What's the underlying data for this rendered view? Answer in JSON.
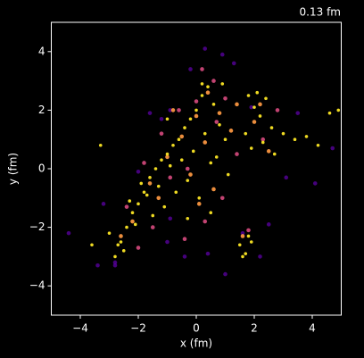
{
  "chart_data": {
    "type": "scatter",
    "title": "0.13 fm",
    "xlabel": "x (fm)",
    "ylabel": "y (fm)",
    "xlim": [
      -5,
      5
    ],
    "ylim": [
      -5,
      5
    ],
    "xticks": [
      {
        "value": -4,
        "label": "−4"
      },
      {
        "value": -2,
        "label": "−2"
      },
      0,
      2,
      4
    ],
    "yticks": [
      {
        "value": -4,
        "label": "−4"
      },
      {
        "value": -2,
        "label": "−2"
      },
      0,
      2,
      4
    ],
    "grid": false,
    "series": [
      {
        "color": "#5c01a6",
        "x": [
          -4.4,
          -3.4,
          -2.8,
          -1.0,
          -0.4,
          0.4,
          1.0,
          1.3,
          3.1,
          4.1,
          4.7,
          -0.9,
          0.3,
          -2.0,
          1.6,
          2.5,
          -3.2,
          -1.6,
          0.9,
          1.9,
          3.5,
          -2.8,
          -0.2,
          -1.2,
          2.2,
          -0.9
        ],
        "y": [
          -2.2,
          -3.3,
          -3.2,
          -2.5,
          -3.0,
          -2.9,
          -3.6,
          3.6,
          -0.3,
          -0.5,
          0.7,
          2.0,
          4.1,
          -0.1,
          -2.2,
          -1.9,
          -1.2,
          1.9,
          3.9,
          2.1,
          1.9,
          -3.3,
          3.4,
          1.7,
          -3.0,
          -1.7
        ]
      },
      {
        "color": "#cc4778",
        "x": [
          -1.8,
          -1.2,
          -0.6,
          0.0,
          0.6,
          1.0,
          -2.4,
          -0.3,
          0.3,
          1.4,
          2.3,
          -1.5,
          0.9,
          1.8,
          -0.9,
          -2.0,
          0.7,
          2.8,
          0.2,
          -0.4
        ],
        "y": [
          0.2,
          1.2,
          2.0,
          2.3,
          3.0,
          2.4,
          -1.3,
          0.0,
          -1.8,
          0.5,
          1.0,
          -2.0,
          -1.0,
          -2.1,
          -0.3,
          -2.7,
          1.6,
          2.0,
          3.4,
          -2.4
        ]
      },
      {
        "color": "#f89540",
        "x": [
          -2.2,
          -1.6,
          -1.0,
          -0.5,
          0.0,
          0.4,
          0.8,
          1.2,
          2.0,
          2.5,
          1.6,
          -0.2,
          0.3,
          -1.3,
          -2.6,
          0.6,
          2.2,
          1.4,
          -0.8,
          0.1
        ],
        "y": [
          -1.8,
          -0.5,
          0.4,
          1.1,
          1.8,
          2.6,
          1.9,
          1.3,
          1.6,
          0.6,
          -2.3,
          -0.2,
          0.9,
          -1.0,
          -2.3,
          -0.7,
          2.2,
          2.2,
          2.0,
          -1.2
        ]
      },
      {
        "color": "#fce624",
        "x": [
          -2.8,
          -2.6,
          -2.4,
          -2.2,
          -2.0,
          -1.8,
          -1.6,
          -1.4,
          -1.2,
          -1.0,
          -0.8,
          -0.6,
          -0.4,
          -0.2,
          0.0,
          0.2,
          0.4,
          0.6,
          0.8,
          1.0,
          -2.5,
          -2.1,
          -1.7,
          -1.3,
          -0.9,
          -0.5,
          -0.1,
          0.3,
          0.7,
          1.1,
          -3.0,
          -2.7,
          -2.3,
          -1.9,
          -1.5,
          -1.1,
          -0.7,
          -0.3,
          0.1,
          0.5,
          1.8,
          2.0,
          2.2,
          2.4,
          2.6,
          1.9,
          2.3,
          2.7,
          1.7,
          2.1,
          3.0,
          3.4,
          3.8,
          4.2,
          4.6,
          4.9,
          1.5,
          1.7,
          1.9,
          1.6,
          1.8,
          -3.3,
          -3.6,
          -1.0,
          0.2,
          0.5,
          -0.3,
          0.9
        ],
        "y": [
          -3.0,
          -2.5,
          -2.0,
          -1.5,
          -1.2,
          -0.8,
          -0.3,
          0.0,
          0.3,
          0.5,
          0.8,
          1.0,
          1.4,
          1.7,
          2.0,
          2.5,
          2.8,
          2.2,
          1.5,
          1.0,
          -2.8,
          -1.9,
          -0.9,
          -0.6,
          0.1,
          0.3,
          0.6,
          1.2,
          0.4,
          -0.2,
          -2.2,
          -2.6,
          -1.1,
          -0.5,
          -1.6,
          -1.3,
          -0.8,
          -0.4,
          -1.0,
          -1.5,
          2.5,
          2.1,
          1.8,
          2.4,
          1.4,
          0.7,
          0.9,
          0.5,
          1.2,
          2.6,
          1.2,
          1.0,
          1.1,
          0.8,
          1.9,
          2.0,
          -2.6,
          -2.9,
          -2.5,
          -3.0,
          -2.3,
          0.8,
          -2.6,
          1.7,
          2.9,
          0.2,
          -1.7,
          2.9
        ]
      }
    ]
  }
}
